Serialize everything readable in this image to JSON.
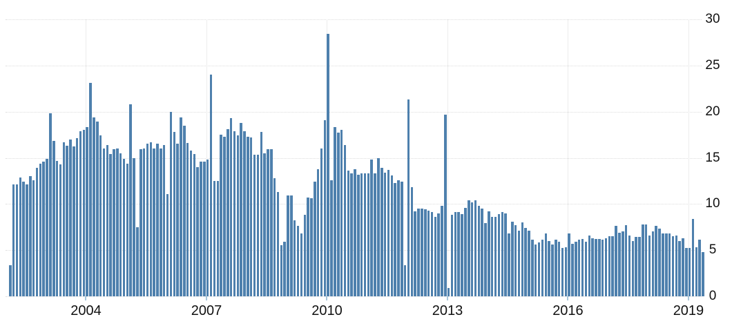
{
  "chart_data": {
    "type": "bar",
    "title": "",
    "xlabel": "",
    "ylabel": "",
    "ylim": [
      0,
      30
    ],
    "y_ticks": [
      0,
      5,
      10,
      15,
      20,
      25,
      30
    ],
    "x_tick_labels": [
      "2004",
      "2007",
      "2010",
      "2013",
      "2016",
      "2019"
    ],
    "x_tick_indices": [
      23,
      59,
      95,
      131,
      167,
      203
    ],
    "grid": true,
    "legend": "none",
    "frequency": "monthly",
    "bar_color": "#4e80ad",
    "gridline_color": "#dcdcdc",
    "tick_mark_color": "#a9c7db",
    "label_color": "#111111",
    "values": [
      3.4,
      12.1,
      12.1,
      12.9,
      12.4,
      12.1,
      13.0,
      12.6,
      13.9,
      14.4,
      14.6,
      14.9,
      19.8,
      16.8,
      14.7,
      14.3,
      16.7,
      16.3,
      17.0,
      16.2,
      17.1,
      17.9,
      18.0,
      18.3,
      23.1,
      19.4,
      18.9,
      17.4,
      16.0,
      16.4,
      15.4,
      15.9,
      16.0,
      15.5,
      14.9,
      14.4,
      20.8,
      15.0,
      7.5,
      15.9,
      16.0,
      16.5,
      16.7,
      16.0,
      16.5,
      16.0,
      16.4,
      11.1,
      20.0,
      17.8,
      16.5,
      19.4,
      18.5,
      16.6,
      15.8,
      15.4,
      14.0,
      14.6,
      14.6,
      14.8,
      24.0,
      12.5,
      12.5,
      17.5,
      17.3,
      18.1,
      19.3,
      17.9,
      17.4,
      18.8,
      17.9,
      17.3,
      17.2,
      15.3,
      15.3,
      17.8,
      15.5,
      15.9,
      15.9,
      12.8,
      11.3,
      5.5,
      5.9,
      10.9,
      10.9,
      8.2,
      7.6,
      6.8,
      8.8,
      10.7,
      10.6,
      12.4,
      13.8,
      16.0,
      19.1,
      28.4,
      12.6,
      18.3,
      17.7,
      18.0,
      16.4,
      13.6,
      13.3,
      13.8,
      13.2,
      13.3,
      13.3,
      13.3,
      14.8,
      13.3,
      15.0,
      13.9,
      13.4,
      13.7,
      13.1,
      12.3,
      12.6,
      12.4,
      3.4,
      21.3,
      11.8,
      9.2,
      9.5,
      9.5,
      9.4,
      9.3,
      9.1,
      8.6,
      9.0,
      9.8,
      19.7,
      0.9,
      8.8,
      9.1,
      9.1,
      8.9,
      9.6,
      10.4,
      10.2,
      10.4,
      9.8,
      9.5,
      7.9,
      9.2,
      8.6,
      8.6,
      8.9,
      9.1,
      9.0,
      6.8,
      8.1,
      7.7,
      7.1,
      8.0,
      7.4,
      7.1,
      6.1,
      5.6,
      5.8,
      6.1,
      6.8,
      6.0,
      5.6,
      6.1,
      5.9,
      5.2,
      5.3,
      6.8,
      5.7,
      5.9,
      6.1,
      6.2,
      5.9,
      6.6,
      6.3,
      6.2,
      6.2,
      6.1,
      6.3,
      6.5,
      6.5,
      7.6,
      6.9,
      7.0,
      7.7,
      6.6,
      6.0,
      6.4,
      6.4,
      7.8,
      7.8,
      6.6,
      7.0,
      7.6,
      7.3,
      6.8,
      6.8,
      6.8,
      6.5,
      6.6,
      6.0,
      6.3,
      5.2,
      5.2,
      8.4,
      5.3,
      6.1,
      4.8
    ]
  }
}
